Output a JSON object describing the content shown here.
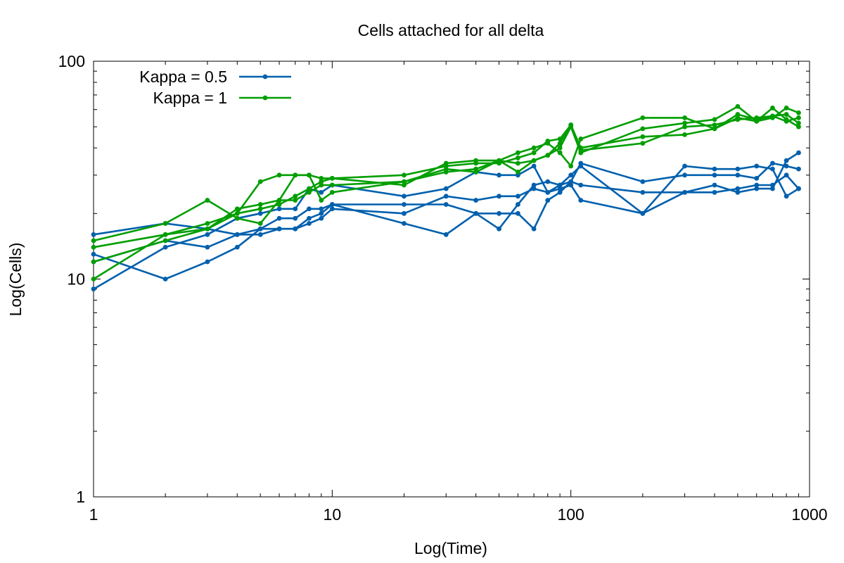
{
  "chart_data": {
    "type": "line",
    "title": "Cells attached for all delta",
    "xlabel": "Log(Time)",
    "ylabel": "Log(Cells)",
    "xscale": "log",
    "yscale": "log",
    "xlim": [
      1,
      1000
    ],
    "ylim": [
      1,
      100
    ],
    "xticks": [
      1,
      10,
      100,
      1000
    ],
    "xtick_labels": [
      "1",
      "10",
      "100",
      "1000"
    ],
    "yticks": [
      1,
      10,
      100
    ],
    "ytick_labels": [
      "1",
      "10",
      "100"
    ],
    "grid": false,
    "legend": "top-left",
    "legend_entries": [
      {
        "label": "Kappa = 0.5",
        "color": "#0060ad"
      },
      {
        "label": "Kappa = 1",
        "color": "#009e00"
      }
    ],
    "series": [
      {
        "group": 0,
        "color": "#0060ad",
        "x": [
          1,
          2,
          3,
          4,
          5,
          6,
          7,
          8,
          9,
          10,
          20,
          30,
          40,
          50,
          60,
          70,
          80,
          90,
          100,
          110,
          200,
          300,
          400,
          500,
          600,
          700,
          800,
          900
        ],
        "y": [
          16,
          18,
          17,
          16,
          16,
          17,
          17,
          19,
          20,
          22,
          22,
          22,
          20,
          20,
          20,
          17,
          23,
          25,
          28,
          34,
          28,
          30,
          30,
          30,
          29,
          34,
          33,
          32
        ]
      },
      {
        "group": 0,
        "color": "#0060ad",
        "x": [
          1,
          2,
          3,
          4,
          5,
          6,
          7,
          8,
          9,
          10,
          20,
          30,
          40,
          50,
          60,
          70,
          80,
          90,
          100,
          110,
          200,
          300,
          400,
          500,
          600,
          700,
          800,
          900
        ],
        "y": [
          13,
          10,
          12,
          14,
          17,
          17,
          17,
          18,
          19,
          21,
          20,
          24,
          23,
          24,
          24,
          26,
          25,
          26,
          27,
          23,
          20,
          25,
          27,
          25,
          26,
          26,
          35,
          38
        ]
      },
      {
        "group": 0,
        "color": "#0060ad",
        "x": [
          1,
          2,
          3,
          4,
          5,
          6,
          7,
          8,
          9,
          10,
          20,
          30,
          40,
          50,
          60,
          70,
          80,
          90,
          100,
          110,
          200,
          300,
          400,
          500,
          600,
          700,
          800,
          900
        ],
        "y": [
          12,
          15,
          14,
          16,
          17,
          19,
          19,
          21,
          21,
          22,
          18,
          16,
          20,
          17,
          22,
          27,
          28,
          27,
          28,
          27,
          25,
          25,
          25,
          26,
          27,
          27,
          30,
          26
        ]
      },
      {
        "group": 0,
        "color": "#0060ad",
        "x": [
          1,
          2,
          3,
          4,
          5,
          6,
          7,
          8,
          9,
          10,
          20,
          30,
          40,
          50,
          60,
          70,
          80,
          90,
          100,
          110,
          200,
          300,
          400,
          500,
          600,
          700,
          800,
          900
        ],
        "y": [
          9,
          14,
          16,
          19,
          20,
          21,
          21,
          26,
          25,
          27,
          24,
          26,
          31,
          30,
          30,
          33,
          25,
          27,
          30,
          33,
          20,
          33,
          32,
          32,
          33,
          32,
          24,
          26
        ]
      },
      {
        "group": 1,
        "color": "#009e00",
        "x": [
          1,
          2,
          3,
          4,
          5,
          6,
          7,
          8,
          9,
          10,
          20,
          30,
          40,
          50,
          60,
          70,
          80,
          90,
          100,
          110,
          200,
          300,
          400,
          500,
          600,
          700,
          800,
          900
        ],
        "y": [
          15,
          18,
          23,
          19,
          18,
          23,
          30,
          30,
          23,
          25,
          28,
          31,
          32,
          35,
          31,
          35,
          37,
          42,
          51,
          39,
          42,
          50,
          51,
          54,
          55,
          56,
          53,
          55
        ]
      },
      {
        "group": 1,
        "color": "#009e00",
        "x": [
          1,
          2,
          3,
          4,
          5,
          6,
          7,
          8,
          9,
          10,
          20,
          30,
          40,
          50,
          60,
          70,
          80,
          90,
          100,
          110,
          200,
          300,
          400,
          500,
          600,
          700,
          800,
          900
        ],
        "y": [
          14,
          16,
          17,
          21,
          22,
          23,
          23,
          25,
          27,
          27,
          28,
          32,
          31,
          35,
          38,
          40,
          42,
          38,
          33,
          44,
          55,
          55,
          49,
          57,
          54,
          56,
          57,
          52
        ]
      },
      {
        "group": 1,
        "color": "#009e00",
        "x": [
          1,
          2,
          3,
          4,
          5,
          6,
          7,
          8,
          9,
          10,
          20,
          30,
          40,
          50,
          60,
          70,
          80,
          90,
          100,
          110,
          200,
          300,
          400,
          500,
          600,
          700,
          800,
          900
        ],
        "y": [
          12,
          15,
          17,
          20,
          21,
          22,
          24,
          26,
          28,
          29,
          30,
          33,
          34,
          34,
          36,
          38,
          43,
          44,
          51,
          40,
          45,
          46,
          49,
          55,
          53,
          55,
          61,
          58
        ]
      },
      {
        "group": 1,
        "color": "#009e00",
        "x": [
          1,
          2,
          3,
          4,
          5,
          6,
          7,
          8,
          9,
          10,
          20,
          30,
          40,
          50,
          60,
          70,
          80,
          90,
          100,
          110,
          200,
          300,
          400,
          500,
          600,
          700,
          800,
          900
        ],
        "y": [
          10,
          16,
          18,
          20,
          28,
          30,
          30,
          30,
          29,
          29,
          27,
          34,
          35,
          35,
          34,
          35,
          37,
          40,
          50,
          38,
          49,
          52,
          54,
          62,
          53,
          61,
          54,
          50
        ]
      }
    ]
  }
}
